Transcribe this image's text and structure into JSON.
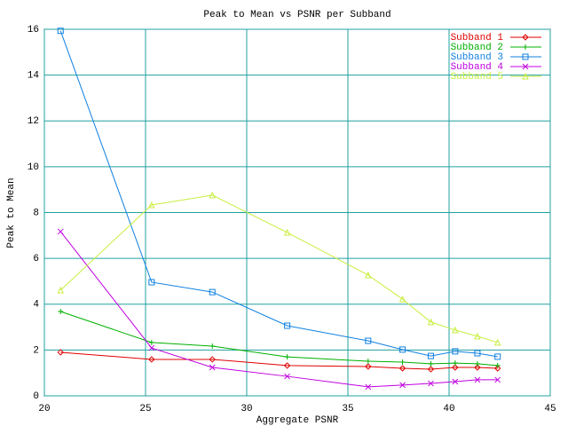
{
  "chart_data": {
    "type": "line",
    "title": "Peak to Mean vs PSNR per Subband",
    "x_label": "Aggregate PSNR",
    "y_label": "Peak to Mean",
    "x": [
      20.8,
      25.3,
      28.3,
      32.0,
      36.0,
      37.7,
      39.1,
      40.3,
      41.4,
      42.4
    ],
    "series": [
      {
        "name": "Subband 1",
        "color": "#e00000",
        "marker": "diamond",
        "values": [
          1.9,
          1.59,
          1.59,
          1.32,
          1.28,
          1.2,
          1.16,
          1.24,
          1.24,
          1.2
        ]
      },
      {
        "name": "Subband 2",
        "color": "#00b000",
        "marker": "plus",
        "values": [
          3.68,
          2.33,
          2.17,
          1.7,
          1.51,
          1.47,
          1.4,
          1.43,
          1.4,
          1.32
        ]
      },
      {
        "name": "Subband 3",
        "color": "#1080e0",
        "marker": "square",
        "values": [
          15.93,
          4.96,
          4.53,
          3.06,
          2.4,
          2.02,
          1.74,
          1.94,
          1.86,
          1.71
        ]
      },
      {
        "name": "Subband 4",
        "color": "#c000e0",
        "marker": "cross",
        "values": [
          7.17,
          2.09,
          1.24,
          0.85,
          0.39,
          0.47,
          0.54,
          0.62,
          0.7,
          0.7
        ]
      },
      {
        "name": "Subband 5",
        "color": "#c8ee40",
        "marker": "triangle",
        "values": [
          4.61,
          8.33,
          8.76,
          7.13,
          5.27,
          4.22,
          3.22,
          2.87,
          2.6,
          2.33
        ]
      }
    ],
    "xlim": [
      20,
      45
    ],
    "xticks": [
      20,
      25,
      30,
      35,
      40,
      45
    ],
    "ylim": [
      0,
      16
    ],
    "yticks": [
      0,
      2,
      4,
      6,
      8,
      10,
      12,
      14,
      16
    ],
    "grid": true,
    "grid_color": "#20a0a0",
    "legend": "top-right"
  }
}
